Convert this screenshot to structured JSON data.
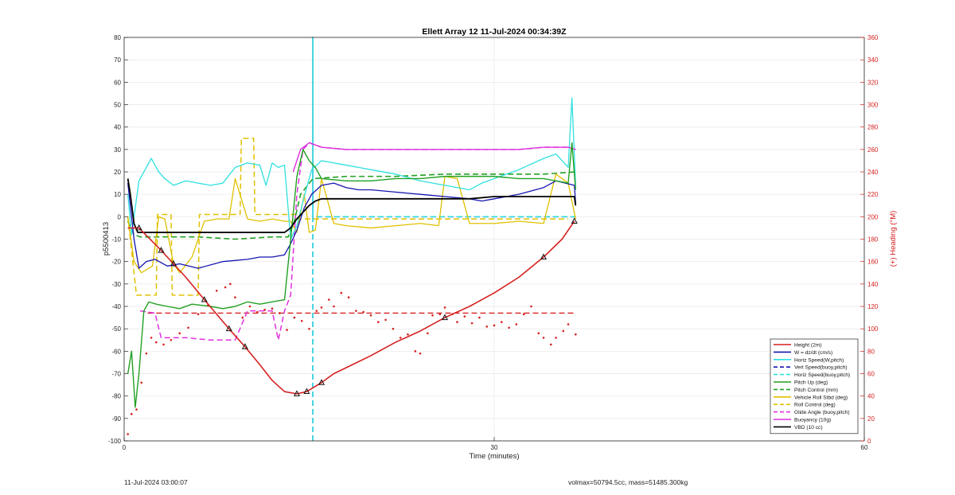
{
  "chart_data": {
    "type": "line",
    "title": "Ellett Array 12 11-Jul-2024 00:34:39Z",
    "xlabel": "Time (minutes)",
    "ylabel": "p5500413",
    "ylabel_right": "(+) Heading (°M)",
    "xlim": [
      0,
      60
    ],
    "ylim": [
      -100,
      80
    ],
    "ylim_right": [
      0,
      360
    ],
    "x_ticks": [
      "0",
      "30",
      "60"
    ],
    "y_ticks": [
      "-100",
      "-90",
      "-80",
      "-70",
      "-60",
      "-50",
      "-40",
      "-30",
      "-20",
      "-10",
      "0",
      "10",
      "20",
      "30",
      "40",
      "50",
      "60",
      "70",
      "80"
    ],
    "y_ticks_right": [
      "0",
      "20",
      "40",
      "60",
      "80",
      "100",
      "120",
      "140",
      "160",
      "180",
      "200",
      "220",
      "240",
      "260",
      "280",
      "300",
      "320",
      "340",
      "360"
    ],
    "grid": true,
    "legend_position": "bottom-right",
    "series": [
      {
        "name": "Height (2m)",
        "color": "#d62020",
        "style": "solid",
        "width": 1.6,
        "markers": "triangle",
        "x": [
          0.3,
          1.2,
          3,
          4,
          5,
          6.5,
          8.5,
          9.8,
          11,
          12,
          13,
          14,
          14.8,
          15.4,
          16,
          17,
          18.5,
          20,
          22,
          24,
          26,
          28,
          30,
          32,
          34,
          35.5,
          36.5
        ],
        "y": [
          -5,
          -5,
          -15,
          -21,
          -27,
          -37,
          -50,
          -58,
          -66,
          -73,
          -78,
          -79,
          -78,
          -76,
          -74,
          -70,
          -66,
          -62,
          -56,
          -51,
          -45,
          -40,
          -34,
          -27,
          -18,
          -10,
          -2
        ]
      },
      {
        "name": "W = dz/dt (cm/s)",
        "color": "#1515b0",
        "style": "solid",
        "width": 1.3,
        "x": [
          0.3,
          0.8,
          1.2,
          1.8,
          2.5,
          3.5,
          4.5,
          6,
          8,
          10,
          11,
          12,
          13,
          13.5,
          14,
          14.6,
          15.2,
          16,
          17,
          18,
          19,
          20,
          22,
          24,
          26,
          28,
          29,
          30,
          32,
          34,
          35,
          36.5,
          36.6
        ],
        "y": [
          15,
          -10,
          -23,
          -20,
          -19,
          -22,
          -21,
          -23,
          -20,
          -19,
          -18,
          -18,
          -17,
          -12,
          -6,
          4,
          10,
          14,
          15,
          13,
          12,
          12,
          11,
          10,
          9,
          8,
          7,
          8,
          10,
          13,
          16,
          14,
          6
        ]
      },
      {
        "name": "Horiz Speed(W,pitch)",
        "color": "#2fe0e0",
        "style": "solid",
        "width": 1.3,
        "x": [
          0.3,
          0.6,
          1.2,
          1.8,
          2.2,
          2.8,
          3.3,
          4,
          5,
          6,
          7,
          8,
          9,
          10,
          11,
          11.5,
          12,
          12.5,
          13,
          13.5,
          14,
          14.6,
          15.2,
          16,
          17,
          18,
          19,
          20,
          22,
          24,
          26,
          28,
          29,
          30,
          32,
          34,
          35,
          36,
          36.3,
          36.6
        ],
        "y": [
          10,
          -8,
          16,
          22,
          26,
          20,
          17,
          14,
          16,
          15,
          14,
          15,
          22,
          24,
          23,
          14,
          24,
          22,
          23,
          -10,
          -4,
          9,
          21,
          25,
          24,
          23,
          22,
          21,
          19,
          16,
          14,
          12,
          15,
          17,
          21,
          26,
          28,
          22,
          53,
          14
        ]
      },
      {
        "name": "Vert Speed(buoy,pitch)",
        "color": "#1515b0",
        "style": "dashed",
        "width": 1.6,
        "x": [
          15.3,
          15.3,
          15.3,
          36.6
        ],
        "y": [
          -100,
          80,
          0,
          0
        ]
      },
      {
        "name": "Horiz Speed(buoy,pitch)",
        "color": "#2fe0e0",
        "style": "dashed",
        "width": 1.6,
        "x": [
          15.3,
          15.3,
          15.3,
          36.6
        ],
        "y": [
          -100,
          80,
          0,
          0
        ]
      },
      {
        "name": "Pitch Up (deg)",
        "color": "#22a022",
        "style": "solid",
        "width": 1.4,
        "x": [
          0.3,
          0.6,
          0.9,
          1.2,
          1.6,
          2,
          2.6,
          3.5,
          4.5,
          5.5,
          7,
          8,
          9,
          10,
          11,
          12,
          13,
          13.5,
          14,
          14.5,
          15,
          15.5,
          16,
          18,
          20,
          22,
          24,
          26,
          28,
          30,
          32,
          34,
          36,
          36.3,
          36.6
        ],
        "y": [
          -70,
          -60,
          -85,
          -70,
          -42,
          -38,
          -39,
          -40,
          -41,
          -39,
          -40,
          -41,
          -40,
          -38,
          -39,
          -38,
          -37,
          -10,
          18,
          30,
          25,
          22,
          17,
          16,
          16,
          17,
          17,
          18,
          18,
          18,
          17,
          17,
          15,
          33,
          12
        ]
      },
      {
        "name": "Pitch Control (mm)",
        "color": "#22a022",
        "style": "dashed",
        "width": 1.6,
        "x": [
          0.3,
          0.8,
          1.3,
          3,
          6,
          9,
          12,
          13.3,
          13.8,
          14.3,
          15.3,
          18,
          22,
          26,
          30,
          34,
          36.6
        ],
        "y": [
          -2,
          -8,
          -9,
          -9,
          -9,
          -10,
          -9,
          -9,
          -2,
          10,
          17,
          18,
          18,
          19,
          19,
          19,
          20
        ]
      },
      {
        "name": "Vehicle Roll Stbd (deg)",
        "color": "#e0c000",
        "style": "solid",
        "width": 1.3,
        "x": [
          0.3,
          0.8,
          1.4,
          2.3,
          2.8,
          3.3,
          4,
          4.5,
          5.5,
          6.5,
          7.5,
          8.5,
          9,
          10,
          11,
          12,
          13,
          13.5,
          14,
          14.6,
          15,
          15.5,
          16,
          17,
          18,
          20,
          22,
          24,
          25.5,
          26,
          27,
          28,
          30,
          32,
          34,
          35,
          36,
          36.6
        ],
        "y": [
          0,
          -20,
          -25,
          -22,
          0,
          -1,
          -21,
          -25,
          -18,
          -2,
          -1,
          -1,
          17,
          -1,
          -2,
          -1,
          -2,
          -2,
          -7,
          10,
          -7,
          -6,
          17,
          -3,
          -4,
          -5,
          -4,
          -3,
          -4,
          18,
          17,
          -3,
          -3,
          -2,
          -3,
          19,
          15,
          -1
        ]
      },
      {
        "name": "Roll Control (deg)",
        "color": "#e0c000",
        "style": "dashed",
        "width": 1.5,
        "x": [
          0.3,
          1,
          1.6,
          2.6,
          2.7,
          3.8,
          3.9,
          6,
          6.1,
          9.4,
          9.5,
          10.5,
          10.6,
          14,
          14.1,
          36
        ],
        "y": [
          0,
          -35,
          -35,
          -35,
          1,
          1,
          -35,
          -35,
          1,
          1,
          35,
          35,
          1,
          1,
          -1,
          -1
        ]
      },
      {
        "name": "Glide Angle (buoy,pitch)",
        "color": "#e030e0",
        "style": "dashed",
        "width": 1.5,
        "x": [
          1.3,
          2.5,
          3,
          5,
          7,
          9,
          10,
          12,
          12.5,
          13,
          13.5,
          14,
          14.5,
          15,
          15.5,
          16,
          18,
          20,
          22,
          24,
          26,
          28,
          30,
          32,
          34,
          36,
          36.6
        ],
        "y": [
          -42,
          -43,
          -54,
          -54,
          -55,
          -55,
          -42,
          -42,
          -55,
          -42,
          -35,
          10,
          30,
          33,
          32,
          31,
          30,
          30,
          30,
          30,
          30,
          30,
          30,
          30,
          31,
          31,
          30
        ]
      },
      {
        "name": "Buoyancy (10g)",
        "color": "#e030e0",
        "style": "solid",
        "width": 1.4,
        "x": [
          13.7,
          14.3,
          15,
          15.5,
          16,
          18,
          20,
          22,
          24,
          26,
          28,
          30,
          32,
          34,
          36,
          36.6
        ],
        "y": [
          20,
          30,
          33,
          32,
          31,
          30,
          30,
          30,
          30,
          30,
          30,
          30,
          30,
          31,
          31,
          30
        ]
      },
      {
        "name": "VBD (10 cc)",
        "color": "#000000",
        "style": "solid",
        "width": 1.8,
        "x": [
          0.3,
          0.5,
          0.8,
          1.1,
          2,
          6,
          10,
          13,
          13.5,
          14,
          14.5,
          15,
          15.5,
          16,
          18,
          20,
          22,
          24,
          26,
          28,
          30,
          32,
          34,
          36,
          36.5,
          36.6
        ],
        "y": [
          17,
          10,
          -3,
          -7,
          -7,
          -7,
          -7,
          -7,
          -5,
          -1,
          2,
          5,
          7,
          8,
          8,
          8,
          8,
          8,
          8,
          8,
          9,
          9,
          9,
          9,
          9,
          5
        ]
      }
    ],
    "heading_mean": {
      "color": "#d62020",
      "style": "dashed",
      "x": [
        1.9,
        36.6
      ],
      "y_right": [
        114,
        114
      ]
    },
    "heading_points": {
      "color": "#d62020",
      "style": "dotted",
      "x": [
        0.3,
        0.6,
        1,
        1.4,
        1.8,
        2.2,
        2.6,
        3.2,
        3.8,
        4.5,
        5.2,
        6,
        6.8,
        7.5,
        8.2,
        8.6,
        9,
        9.6,
        10.2,
        10.8,
        11.4,
        12,
        12.6,
        13.2,
        13.8,
        14.4,
        15,
        15.6,
        16,
        16.6,
        17,
        17.6,
        18.2,
        18.8,
        19.4,
        20,
        20.6,
        21.2,
        21.8,
        22.4,
        23,
        23.6,
        24,
        24.6,
        25,
        25.6,
        26,
        26.6,
        27,
        27.6,
        28.2,
        28.8,
        29.4,
        30,
        30.6,
        31.2,
        31.8,
        32.4,
        33,
        33.6,
        34,
        34.6,
        35,
        35.6,
        36,
        36.6
      ],
      "y_right": [
        6,
        24,
        28,
        52,
        78,
        92,
        88,
        86,
        90,
        96,
        101,
        113,
        121,
        134,
        137,
        140,
        128,
        110,
        120,
        115,
        117,
        118,
        114,
        99,
        110,
        107,
        100,
        116,
        119,
        126,
        120,
        132,
        128,
        116,
        115,
        112,
        106,
        108,
        100,
        92,
        95,
        80,
        78,
        96,
        112,
        113,
        119,
        113,
        106,
        111,
        105,
        110,
        102,
        103,
        106,
        101,
        104,
        113,
        120,
        96,
        92,
        86,
        92,
        98,
        104,
        95
      ]
    }
  },
  "footer": {
    "left": "11-Jul-2024 03:00:07",
    "right": "volmax=50794.5cc, mass=51485.300kg"
  }
}
